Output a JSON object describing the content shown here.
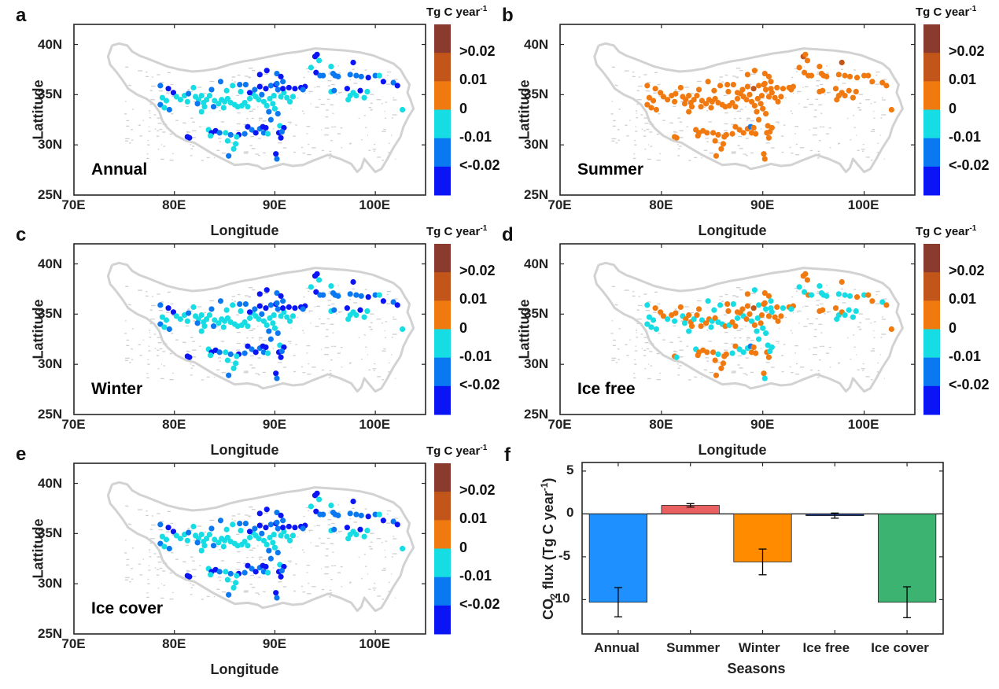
{
  "figure": {
    "colorbar": {
      "title": "Tg C year",
      "title_sup": "-1",
      "bins": [
        {
          "label": ">0.02",
          "color": "#8B3A2E"
        },
        {
          "label": "0.01",
          "color": "#C2561A"
        },
        {
          "label": "0",
          "color": "#F07A10"
        },
        {
          "label": "-0.01",
          "color": "#16DDE3"
        },
        {
          "label": "<-0.02",
          "color": "#0A78F0"
        },
        {
          "label": "",
          "color": "#0A14F5"
        }
      ],
      "tick_labels": [
        ">0.02",
        "0.01",
        "0",
        "-0.01",
        "<-0.02"
      ]
    },
    "map_axes": {
      "xlabel": "Longitude",
      "ylabel": "Lattitude",
      "xticks": [
        "70E",
        "80E",
        "90E",
        "100E"
      ],
      "yticks": [
        "40N",
        "35N",
        "30N",
        "25N"
      ],
      "xlim": [
        70,
        105
      ],
      "ylim": [
        25,
        42
      ]
    },
    "panels": [
      {
        "letter": "a",
        "title": "Annual"
      },
      {
        "letter": "b",
        "title": "Summer"
      },
      {
        "letter": "c",
        "title": "Winter"
      },
      {
        "letter": "d",
        "title": "Ice free"
      },
      {
        "letter": "e",
        "title": "Ice cover"
      },
      {
        "letter": "f",
        "title": ""
      }
    ]
  },
  "chart_data": [
    {
      "type": "scatter",
      "title": "Annual",
      "panel": "a",
      "xlabel": "Longitude",
      "ylabel": "Lattitude",
      "xlim": [
        70,
        105
      ],
      "ylim": [
        25,
        42
      ],
      "dominant_classes": [
        "-0.01",
        "<-0.02",
        "lowest"
      ],
      "colorbar_bins": [
        ">0.02",
        "0.01",
        "0",
        "-0.01",
        "<-0.02"
      ]
    },
    {
      "type": "scatter",
      "title": "Summer",
      "panel": "b",
      "xlabel": "Longitude",
      "ylabel": "Lattitude",
      "xlim": [
        70,
        105
      ],
      "ylim": [
        25,
        42
      ],
      "dominant_classes": [
        "0",
        "0.01"
      ]
    },
    {
      "type": "scatter",
      "title": "Winter",
      "panel": "c",
      "xlabel": "Longitude",
      "ylabel": "Lattitude",
      "xlim": [
        70,
        105
      ],
      "ylim": [
        25,
        42
      ],
      "dominant_classes": [
        "-0.01",
        "<-0.02",
        "lowest"
      ]
    },
    {
      "type": "scatter",
      "title": "Ice free",
      "panel": "d",
      "xlabel": "Longitude",
      "ylabel": "Lattitude",
      "xlim": [
        70,
        105
      ],
      "ylim": [
        25,
        42
      ],
      "dominant_classes": [
        "0",
        "-0.01"
      ]
    },
    {
      "type": "scatter",
      "title": "Ice cover",
      "panel": "e",
      "xlabel": "Longitude",
      "ylabel": "Lattitude",
      "xlim": [
        70,
        105
      ],
      "ylim": [
        25,
        42
      ],
      "dominant_classes": [
        "-0.01",
        "<-0.02",
        "lowest"
      ]
    },
    {
      "type": "bar",
      "panel": "f",
      "title": "",
      "xlabel": "Seasons",
      "ylabel": "CO2 flux (Tg C year-1)",
      "ylabel_parts": {
        "pre": "CO",
        "sub": "2",
        "mid": " flux (Tg C year",
        "sup": "-1",
        "post": ")"
      },
      "categories": [
        "Annual",
        "Summer",
        "Winter",
        "Ice free",
        "Ice cover"
      ],
      "values": [
        -10.3,
        1.0,
        -5.6,
        -0.2,
        -10.3
      ],
      "errors": [
        1.7,
        0.2,
        1.5,
        0.3,
        1.8
      ],
      "colors": [
        "#1E90FF",
        "#E86060",
        "#FF8C00",
        "#1E3A8A",
        "#3CB371"
      ],
      "yticks": [
        5,
        0,
        -5,
        -10
      ],
      "ytick_labels": [
        "5",
        "0",
        "-5",
        "-10"
      ],
      "ylim": [
        -14,
        6
      ]
    }
  ]
}
